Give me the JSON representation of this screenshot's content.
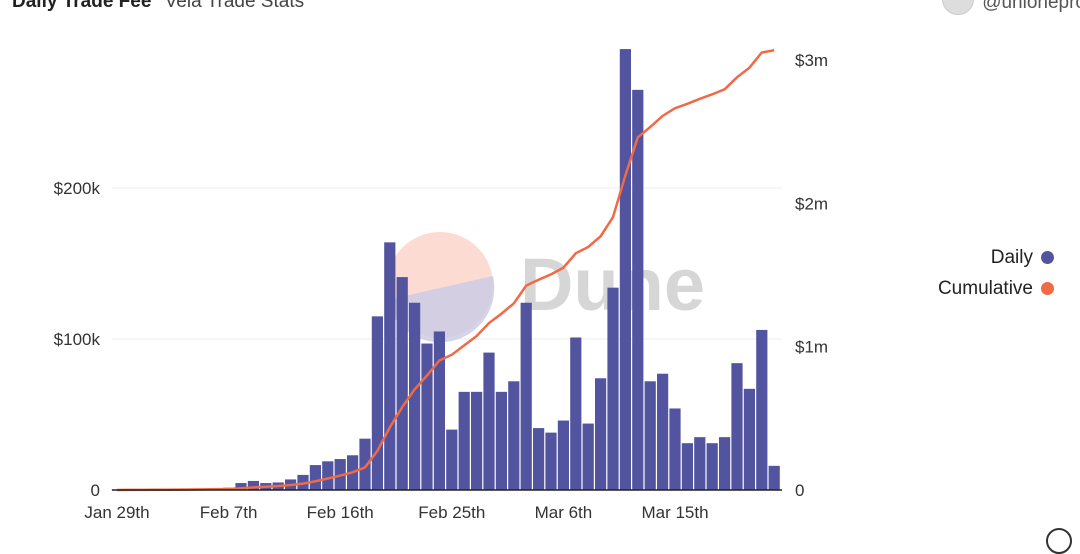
{
  "header": {
    "title": "Daily Trade Fee",
    "subtitle": "Vela Trade Stats",
    "user": "@unionepro"
  },
  "watermark": "Dune",
  "colors": {
    "daily": "#5254a0",
    "cumulative": "#ef6a45"
  },
  "chart_data": {
    "type": "bar+line",
    "title": "Daily Trade Fee",
    "subtitle": "Vela Trade Stats",
    "x_start": "Jan 29",
    "x_tick_labels": [
      "Jan 29th",
      "Feb 7th",
      "Feb 16th",
      "Feb 25th",
      "Mar 6th",
      "Mar 15th"
    ],
    "x_tick_day_offsets": [
      0,
      9,
      18,
      27,
      36,
      45
    ],
    "left_axis": {
      "ticks": [
        0,
        100000,
        200000
      ],
      "tick_labels": [
        "0",
        "$100k",
        "$200k"
      ],
      "ylim": [
        0,
        300000
      ]
    },
    "right_axis": {
      "ticks": [
        0,
        1000000,
        2000000,
        3000000
      ],
      "tick_labels": [
        "0",
        "$1m",
        "$2m",
        "$3m"
      ],
      "ylim": [
        0,
        3100000
      ]
    },
    "legend": {
      "placement": "right",
      "entries": [
        "Daily",
        "Cumulative"
      ]
    },
    "grid": true,
    "series": [
      {
        "name": "Daily",
        "axis": "left",
        "kind": "bar",
        "values": [
          300,
          300,
          300,
          500,
          500,
          800,
          1000,
          1000,
          1200,
          1500,
          4600,
          6000,
          4600,
          5000,
          7000,
          10000,
          16500,
          19000,
          20500,
          23000,
          34000,
          115000,
          164000,
          141000,
          124000,
          97000,
          105000,
          40000,
          65000,
          65000,
          91000,
          65000,
          72000,
          124000,
          41000,
          38000,
          46000,
          101000,
          44000,
          74000,
          134000,
          292000,
          265000,
          72000,
          77000,
          54000,
          31000,
          35000,
          31000,
          35000,
          84000,
          67000,
          106000,
          16000
        ]
      },
      {
        "name": "Cumulative",
        "axis": "right",
        "kind": "line",
        "values": [
          300,
          600,
          900,
          1400,
          1900,
          2700,
          3700,
          4700,
          5900,
          7400,
          12000,
          18000,
          22600,
          27600,
          34600,
          44600,
          61100,
          80100,
          100600,
          123600,
          157600,
          273000,
          437000,
          578000,
          702000,
          799000,
          904000,
          944000,
          1009000,
          1074000,
          1165000,
          1230000,
          1302000,
          1426000,
          1467000,
          1505000,
          1551000,
          1652000,
          1696000,
          1770000,
          1904000,
          2196000,
          2461000,
          2533000,
          2610000,
          2664000,
          2695000,
          2730000,
          2761000,
          2796000,
          2880000,
          2947000,
          3053000,
          3069000
        ]
      }
    ]
  }
}
